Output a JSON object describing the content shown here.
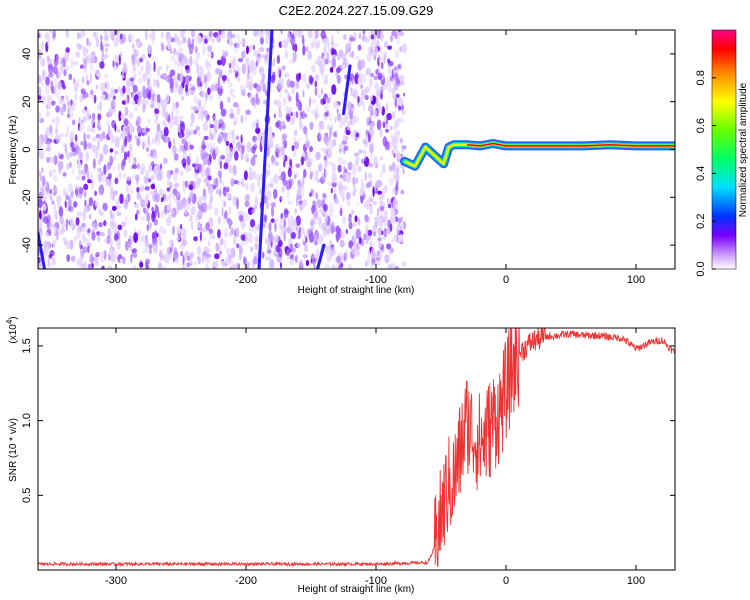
{
  "figure_title": "C2E2.2024.227.15.09.G29",
  "chart_data": [
    {
      "type": "heatmap",
      "xlabel": "Height of straight line (km)",
      "ylabel": "Frequency (Hz)",
      "xlim": [
        -360,
        130
      ],
      "ylim": [
        -50,
        50
      ],
      "x_ticks": [
        -300,
        -200,
        -100,
        0,
        100
      ],
      "y_ticks": [
        -40,
        -20,
        0,
        20,
        40
      ],
      "colorbar": {
        "label": "Normalized spectral amplitude",
        "range": [
          0,
          1
        ],
        "ticks": [
          "0.0",
          "0.2",
          "0.4",
          "0.6",
          "0.8"
        ]
      },
      "noise_region_x": [
        -360,
        -78
      ],
      "signal_track": {
        "x": [
          -78,
          -70,
          -62,
          -56,
          -52,
          -48,
          -44,
          -40,
          -30,
          -20,
          -10,
          0,
          20,
          40,
          60,
          80,
          100,
          130
        ],
        "y": [
          -5,
          -7,
          1,
          -2,
          -4,
          -6,
          1,
          2,
          2,
          1.5,
          2.5,
          1.5,
          1.5,
          1.5,
          1.5,
          2,
          1.5,
          1.5
        ]
      }
    },
    {
      "type": "line",
      "xlabel": "Height of straight line (km)",
      "ylabel": "SNR (10 * v/v)",
      "y_multiplier": "(x10",
      "y_multiplier_exp": "4",
      "y_multiplier_close": ")",
      "xlim": [
        -360,
        130
      ],
      "ylim": [
        0,
        1.62
      ],
      "x_ticks": [
        -300,
        -200,
        -100,
        0,
        100
      ],
      "y_ticks": [
        "0.5",
        "1.0",
        "1.5"
      ],
      "series": [
        {
          "color": "#ee3333",
          "x": [
            -360,
            -300,
            -200,
            -100,
            -60,
            -55,
            -50,
            -45,
            -40,
            -35,
            -30,
            -25,
            -20,
            -15,
            -10,
            -5,
            0,
            5,
            10,
            20,
            30,
            40,
            50,
            60,
            70,
            80,
            90,
            100,
            110,
            120,
            130
          ],
          "y": [
            0.04,
            0.04,
            0.04,
            0.04,
            0.05,
            0.15,
            0.35,
            0.55,
            0.6,
            0.8,
            1.0,
            0.9,
            0.85,
            0.9,
            1.0,
            1.05,
            1.2,
            1.35,
            1.45,
            1.53,
            1.56,
            1.57,
            1.58,
            1.57,
            1.57,
            1.56,
            1.55,
            1.48,
            1.52,
            1.54,
            1.45
          ]
        }
      ]
    }
  ]
}
